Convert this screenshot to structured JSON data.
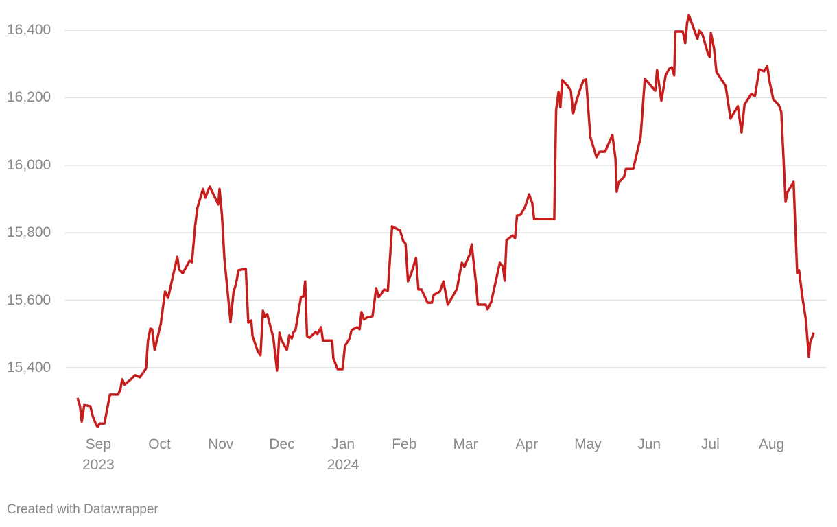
{
  "chart_data": {
    "type": "line",
    "color": "#c71e1d",
    "grid": true,
    "source": "Created with Datawrapper",
    "xlim": [
      8.66,
      20.7
    ],
    "ylim": [
      15220,
      16450
    ],
    "xticks": [
      {
        "value": 9,
        "label": "Sep\n2023"
      },
      {
        "value": 10,
        "label": "Oct"
      },
      {
        "value": 11,
        "label": "Nov"
      },
      {
        "value": 12,
        "label": "Dec"
      },
      {
        "value": 13,
        "label": "Jan\n2024"
      },
      {
        "value": 14,
        "label": "Feb"
      },
      {
        "value": 15,
        "label": "Mar"
      },
      {
        "value": 16,
        "label": "Apr"
      },
      {
        "value": 17,
        "label": "May"
      },
      {
        "value": 18,
        "label": "Jun"
      },
      {
        "value": 19,
        "label": "Jul"
      },
      {
        "value": 20,
        "label": "Aug"
      }
    ],
    "yticks": [
      {
        "value": 15400,
        "label": "15,400"
      },
      {
        "value": 15600,
        "label": "15,600"
      },
      {
        "value": 15800,
        "label": "15,800"
      },
      {
        "value": 16000,
        "label": "16,000"
      },
      {
        "value": 16200,
        "label": "16,200"
      },
      {
        "value": 16400,
        "label": "16,400"
      }
    ],
    "x": [
      8.66,
      8.7,
      8.73,
      8.77,
      8.87,
      8.91,
      8.96,
      8.99,
      9.02,
      9.1,
      9.19,
      9.32,
      9.36,
      9.39,
      9.43,
      9.53,
      9.6,
      9.68,
      9.78,
      9.81,
      9.85,
      9.88,
      9.92,
      10.02,
      10.09,
      10.14,
      10.23,
      10.29,
      10.32,
      10.38,
      10.49,
      10.53,
      10.58,
      10.62,
      10.71,
      10.75,
      10.79,
      10.82,
      10.96,
      10.98,
      11.02,
      11.06,
      11.16,
      11.21,
      11.25,
      11.29,
      11.41,
      11.45,
      11.5,
      11.52,
      11.61,
      11.65,
      11.69,
      11.72,
      11.76,
      11.86,
      11.92,
      11.96,
      11.99,
      12.08,
      12.12,
      12.16,
      12.19,
      12.22,
      12.31,
      12.35,
      12.38,
      12.41,
      12.45,
      12.55,
      12.58,
      12.64,
      12.67,
      12.82,
      12.84,
      12.91,
      12.99,
      13.03,
      13.1,
      13.14,
      13.23,
      13.27,
      13.3,
      13.34,
      13.39,
      13.48,
      13.54,
      13.58,
      13.63,
      13.67,
      13.73,
      13.8,
      13.93,
      13.98,
      14.02,
      14.06,
      14.12,
      14.19,
      14.23,
      14.28,
      14.38,
      14.45,
      14.48,
      14.58,
      14.64,
      14.71,
      14.76,
      14.86,
      14.91,
      14.94,
      14.98,
      15.07,
      15.1,
      15.17,
      15.2,
      15.33,
      15.36,
      15.42,
      15.56,
      15.61,
      15.64,
      15.67,
      15.77,
      15.81,
      15.84,
      15.9,
      15.98,
      16.04,
      16.09,
      16.12,
      16.45,
      16.48,
      16.52,
      16.55,
      16.58,
      16.67,
      16.72,
      16.76,
      16.81,
      16.88,
      16.93,
      16.97,
      17.04,
      17.14,
      17.19,
      17.28,
      17.4,
      17.45,
      17.47,
      17.5,
      17.59,
      17.62,
      17.74,
      17.86,
      17.93,
      18.1,
      18.13,
      18.2,
      18.27,
      18.33,
      18.37,
      18.41,
      18.43,
      18.55,
      18.59,
      18.62,
      18.65,
      18.79,
      18.82,
      18.87,
      18.96,
      18.99,
      19.01,
      19.06,
      19.1,
      19.25,
      19.33,
      19.45,
      19.51,
      19.56,
      19.67,
      19.73,
      19.8,
      19.88,
      19.93,
      19.97,
      20.03,
      20.12,
      20.16,
      20.23,
      20.26,
      20.36,
      20.42,
      20.45,
      20.5,
      20.56,
      20.61,
      20.63,
      20.69
    ],
    "values": [
      15311,
      15286,
      15241,
      15290,
      15286,
      15256,
      15233,
      15225,
      15235,
      15235,
      15321,
      15321,
      15335,
      15366,
      15350,
      15366,
      15378,
      15372,
      15398,
      15479,
      15516,
      15514,
      15453,
      15530,
      15626,
      15607,
      15680,
      15729,
      15691,
      15680,
      15717,
      15713,
      15819,
      15874,
      15930,
      15904,
      15924,
      15937,
      15884,
      15930,
      15853,
      15723,
      15536,
      15626,
      15648,
      15689,
      15693,
      15534,
      15540,
      15494,
      15447,
      15437,
      15569,
      15550,
      15559,
      15489,
      15392,
      15504,
      15483,
      15453,
      15496,
      15487,
      15506,
      15510,
      15609,
      15611,
      15656,
      15494,
      15489,
      15506,
      15500,
      15520,
      15481,
      15481,
      15428,
      15396,
      15396,
      15465,
      15485,
      15512,
      15520,
      15514,
      15565,
      15543,
      15549,
      15553,
      15636,
      15609,
      15620,
      15632,
      15628,
      15819,
      15807,
      15776,
      15768,
      15656,
      15683,
      15726,
      15632,
      15632,
      15593,
      15593,
      15616,
      15626,
      15656,
      15587,
      15602,
      15634,
      15683,
      15711,
      15699,
      15737,
      15766,
      15652,
      15587,
      15587,
      15573,
      15595,
      15711,
      15701,
      15658,
      15778,
      15792,
      15784,
      15851,
      15853,
      15880,
      15914,
      15888,
      15841,
      15841,
      16164,
      16217,
      16172,
      16252,
      16235,
      16221,
      16154,
      16189,
      16229,
      16252,
      16254,
      16083,
      16024,
      16040,
      16040,
      16089,
      16020,
      15922,
      15949,
      15965,
      15989,
      15989,
      16083,
      16256,
      16221,
      16282,
      16191,
      16266,
      16286,
      16290,
      16266,
      16396,
      16396,
      16362,
      16422,
      16445,
      16374,
      16400,
      16388,
      16331,
      16321,
      16392,
      16347,
      16276,
      16235,
      16138,
      16175,
      16097,
      16180,
      16211,
      16205,
      16284,
      16278,
      16294,
      16246,
      16195,
      16178,
      16158,
      15892,
      15920,
      15951,
      15680,
      15689,
      15615,
      15544,
      15433,
      15474,
      15504
    ]
  }
}
